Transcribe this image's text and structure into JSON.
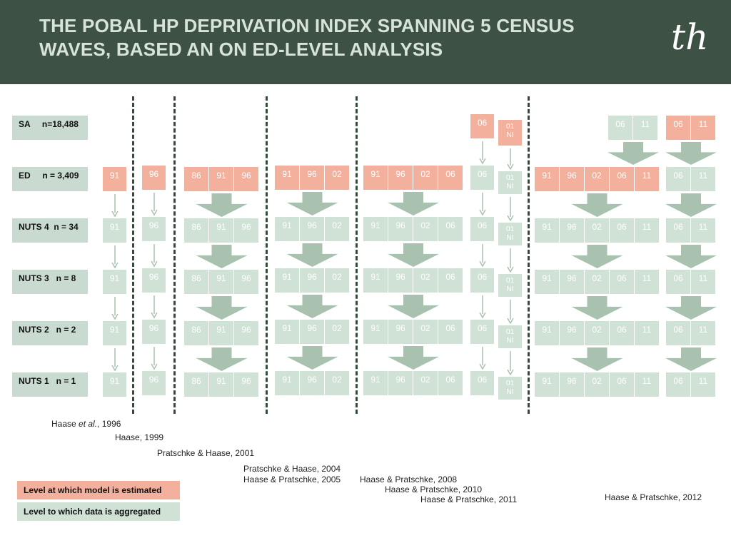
{
  "header": {
    "title": "THE POBAL HP DEPRIVATION INDEX SPANNING 5 CENSUS WAVES, BASED AN ON ED-LEVEL ANALYSIS",
    "logo": "th"
  },
  "levels": [
    {
      "label": "SA     n=18,488"
    },
    {
      "label": "ED     n = 3,409"
    },
    {
      "label": "NUTS 4  n = 34"
    },
    {
      "label": "NUTS 3   n = 8"
    },
    {
      "label": "NUTS 2   n = 2"
    },
    {
      "label": "NUTS 1   n = 1"
    }
  ],
  "groups": [
    {
      "name": "haase-1996",
      "sa": null,
      "rows": [
        {
          "level": "ED",
          "cells": [
            "91"
          ],
          "estimated": true
        },
        {
          "level": "NUTS 4",
          "cells": [
            "91"
          ],
          "estimated": false
        },
        {
          "level": "NUTS 3",
          "cells": [
            "91"
          ],
          "estimated": false
        },
        {
          "level": "NUTS 2",
          "cells": [
            "91"
          ],
          "estimated": false
        },
        {
          "level": "NUTS 1",
          "cells": [
            "91"
          ],
          "estimated": false
        }
      ]
    },
    {
      "name": "haase-1999",
      "sa": null,
      "rows": [
        {
          "level": "ED",
          "cells": [
            "96"
          ],
          "estimated": true
        },
        {
          "level": "NUTS 4",
          "cells": [
            "96"
          ],
          "estimated": false
        },
        {
          "level": "NUTS 3",
          "cells": [
            "96"
          ],
          "estimated": false
        },
        {
          "level": "NUTS 2",
          "cells": [
            "96"
          ],
          "estimated": false
        },
        {
          "level": "NUTS 1",
          "cells": [
            "96"
          ],
          "estimated": false
        }
      ]
    },
    {
      "name": "pratschke-haase-2001",
      "sa": null,
      "rows": [
        {
          "level": "ED",
          "cells": [
            "86",
            "91",
            "96"
          ],
          "estimated": true
        },
        {
          "level": "NUTS 4",
          "cells": [
            "86",
            "91",
            "96"
          ],
          "estimated": false
        },
        {
          "level": "NUTS 3",
          "cells": [
            "86",
            "91",
            "96"
          ],
          "estimated": false
        },
        {
          "level": "NUTS 2",
          "cells": [
            "86",
            "91",
            "96"
          ],
          "estimated": false
        },
        {
          "level": "NUTS 1",
          "cells": [
            "86",
            "91",
            "96"
          ],
          "estimated": false
        }
      ]
    },
    {
      "name": "pratschke-haase-2004",
      "sa": null,
      "rows": [
        {
          "level": "ED",
          "cells": [
            "91",
            "96",
            "02"
          ],
          "estimated": true
        },
        {
          "level": "NUTS 4",
          "cells": [
            "91",
            "96",
            "02"
          ],
          "estimated": false
        },
        {
          "level": "NUTS 3",
          "cells": [
            "91",
            "96",
            "02"
          ],
          "estimated": false
        },
        {
          "level": "NUTS 2",
          "cells": [
            "91",
            "96",
            "02"
          ],
          "estimated": false
        },
        {
          "level": "NUTS 1",
          "cells": [
            "91",
            "96",
            "02"
          ],
          "estimated": false
        }
      ]
    },
    {
      "name": "haase-pratschke-2008",
      "sa": null,
      "rows": [
        {
          "level": "ED",
          "cells": [
            "91",
            "96",
            "02",
            "06"
          ],
          "estimated": true
        },
        {
          "level": "NUTS 4",
          "cells": [
            "91",
            "96",
            "02",
            "06"
          ],
          "estimated": false
        },
        {
          "level": "NUTS 3",
          "cells": [
            "91",
            "96",
            "02",
            "06"
          ],
          "estimated": false
        },
        {
          "level": "NUTS 2",
          "cells": [
            "91",
            "96",
            "02",
            "06"
          ],
          "estimated": false
        },
        {
          "level": "NUTS 1",
          "cells": [
            "91",
            "96",
            "02",
            "06"
          ],
          "estimated": false
        }
      ]
    },
    {
      "name": "haase-pratschke-2010",
      "sa": {
        "cells": [
          "06"
        ],
        "estimated": true
      },
      "rows": [
        {
          "level": "ED",
          "cells": [
            "06"
          ],
          "estimated": false
        },
        {
          "level": "NUTS 4",
          "cells": [
            "06"
          ],
          "estimated": false
        },
        {
          "level": "NUTS 3",
          "cells": [
            "06"
          ],
          "estimated": false
        },
        {
          "level": "NUTS 2",
          "cells": [
            "06"
          ],
          "estimated": false
        },
        {
          "level": "NUTS 1",
          "cells": [
            "06"
          ],
          "estimated": false
        }
      ]
    },
    {
      "name": "haase-pratschke-2011",
      "sa": {
        "cells": [
          "01\nNI"
        ],
        "estimated": true
      },
      "rows": [
        {
          "level": "ED",
          "cells": [
            "01\nNI"
          ],
          "estimated": false
        },
        {
          "level": "NUTS 4",
          "cells": [
            "01\nNI"
          ],
          "estimated": false
        },
        {
          "level": "NUTS 3",
          "cells": [
            "01\nNI"
          ],
          "estimated": false
        },
        {
          "level": "NUTS 2",
          "cells": [
            "01\nNI"
          ],
          "estimated": false
        },
        {
          "level": "NUTS 1",
          "cells": [
            "01\nNI"
          ],
          "estimated": false
        }
      ]
    },
    {
      "name": "haase-pratschke-2012-a",
      "sa": {
        "cells": [
          "06",
          "11"
        ],
        "estimated": false
      },
      "rows": [
        {
          "level": "ED",
          "cells": [
            "91",
            "96",
            "02",
            "06",
            "11"
          ],
          "estimated": true
        },
        {
          "level": "NUTS 4",
          "cells": [
            "91",
            "96",
            "02",
            "06",
            "11"
          ],
          "estimated": false
        },
        {
          "level": "NUTS 3",
          "cells": [
            "91",
            "96",
            "02",
            "06",
            "11"
          ],
          "estimated": false
        },
        {
          "level": "NUTS 2",
          "cells": [
            "91",
            "96",
            "02",
            "06",
            "11"
          ],
          "estimated": false
        },
        {
          "level": "NUTS 1",
          "cells": [
            "91",
            "96",
            "02",
            "06",
            "11"
          ],
          "estimated": false
        }
      ]
    },
    {
      "name": "haase-pratschke-2012-b",
      "sa": {
        "cells": [
          "06",
          "11"
        ],
        "estimated": true
      },
      "rows": [
        {
          "level": "ED",
          "cells": [
            "06",
            "11"
          ],
          "estimated": false
        },
        {
          "level": "NUTS 4",
          "cells": [
            "06",
            "11"
          ],
          "estimated": false
        },
        {
          "level": "NUTS 3",
          "cells": [
            "06",
            "11"
          ],
          "estimated": false
        },
        {
          "level": "NUTS 2",
          "cells": [
            "06",
            "11"
          ],
          "estimated": false
        },
        {
          "level": "NUTS 1",
          "cells": [
            "06",
            "11"
          ],
          "estimated": false
        }
      ]
    }
  ],
  "references": [
    {
      "author": "Haase ",
      "etal": "et al.",
      "year": ", 1996"
    },
    {
      "text": "Haase, 1999"
    },
    {
      "text": "Pratschke & Haase, 2001"
    },
    {
      "text": "Pratschke & Haase, 2004"
    },
    {
      "text": "Haase & Pratschke, 2005"
    },
    {
      "text": "Haase & Pratschke, 2008"
    },
    {
      "text": "Haase & Pratschke, 2010"
    },
    {
      "text": "Haase & Pratschke, 2011"
    },
    {
      "text": "Haase & Pratschke, 2012"
    }
  ],
  "legend": {
    "estimated": "Level at which model is estimated",
    "aggregated": "Level to which data is aggregated"
  },
  "colors": {
    "header": "#3d5244",
    "estimated": "#f3b19d",
    "aggregated": "#d0e1d6",
    "arrow": "#a9c2b0",
    "divider": "#344a3b"
  }
}
